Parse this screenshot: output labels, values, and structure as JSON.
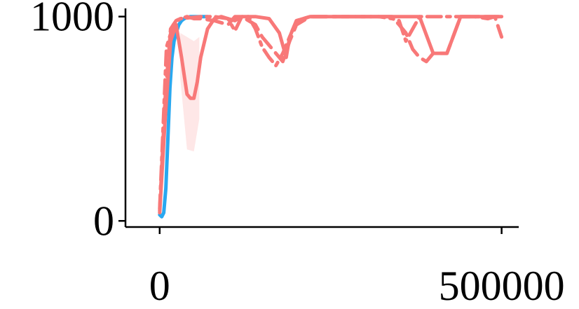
{
  "chart_data": {
    "type": "line",
    "title": "",
    "xlabel": "",
    "ylabel": "",
    "xlim": [
      -50000,
      525000
    ],
    "ylim": [
      -30,
      1040
    ],
    "xticks": [
      0,
      500000
    ],
    "xtick_labels": [
      "0",
      "500000"
    ],
    "yticks": [
      0,
      1000
    ],
    "ytick_labels": [
      "0",
      "1000"
    ],
    "grid": false,
    "legend": "none",
    "series": [
      {
        "color": "#29a8f0",
        "style": "solid",
        "x": [
          0,
          3000,
          6000,
          9000,
          12000,
          15000,
          18000,
          21000,
          24000,
          28000,
          32000,
          36000,
          40000,
          45000,
          50000,
          60000,
          70000
        ],
        "y": [
          30,
          20,
          40,
          160,
          400,
          650,
          800,
          880,
          920,
          960,
          980,
          990,
          995,
          1000,
          1000,
          1000,
          1000
        ]
      },
      {
        "color": "#f87878",
        "style": "solid",
        "band": [
          {
            "x": 30000,
            "y": 800,
            "y_low": 700,
            "y_high": 920
          },
          {
            "x": 40000,
            "y": 620,
            "y_low": 350,
            "y_high": 900
          },
          {
            "x": 50000,
            "y": 600,
            "y_low": 340,
            "y_high": 880
          },
          {
            "x": 58000,
            "y": 700,
            "y_low": 500,
            "y_high": 900
          }
        ],
        "x": [
          0,
          8000,
          16000,
          24000,
          32000,
          40000,
          45000,
          50000,
          55000,
          60000,
          70000,
          80000,
          90000,
          100000,
          110000,
          120000,
          140000,
          160000,
          175000,
          185000,
          190000,
          200000,
          220000,
          240000,
          260000,
          280000,
          300000,
          330000,
          350000,
          380000,
          400000,
          420000,
          440000,
          460000,
          480000,
          490000,
          500000
        ],
        "y": [
          40,
          500,
          880,
          960,
          800,
          620,
          600,
          600,
          680,
          800,
          940,
          990,
          1000,
          990,
          980,
          1000,
          1000,
          990,
          920,
          800,
          900,
          980,
          1000,
          1000,
          1000,
          1000,
          1000,
          1000,
          1000,
          1000,
          820,
          820,
          1000,
          1000,
          1000,
          1000,
          1000
        ]
      },
      {
        "color": "#f87878",
        "style": "dashed",
        "x": [
          0,
          8000,
          16000,
          24000,
          30000,
          40000,
          50000,
          60000,
          80000,
          100000,
          110000,
          120000,
          140000,
          150000,
          160000,
          170000,
          180000,
          190000,
          200000,
          220000,
          260000,
          300000,
          330000,
          340000,
          350000,
          360000,
          370000,
          380000,
          390000,
          400000,
          420000,
          440000,
          460000,
          480000,
          490000,
          500000
        ],
        "y": [
          50,
          600,
          940,
          980,
          990,
          1000,
          990,
          990,
          980,
          960,
          1000,
          1000,
          960,
          900,
          860,
          820,
          780,
          880,
          960,
          1000,
          1000,
          1000,
          1000,
          1000,
          960,
          920,
          840,
          800,
          780,
          820,
          820,
          1000,
          1000,
          990,
          1000,
          900
        ]
      },
      {
        "color": "#f87878",
        "style": "dashdot",
        "x": [
          0,
          10000,
          20000,
          30000,
          60000,
          80000,
          100000,
          110000,
          120000,
          130000,
          140000,
          150000,
          160000,
          170000,
          180000,
          200000,
          220000,
          260000,
          320000,
          340000,
          350000,
          360000,
          380000,
          420000,
          460000,
          500000
        ],
        "y": [
          60,
          850,
          960,
          990,
          1000,
          1000,
          990,
          930,
          1000,
          1000,
          940,
          850,
          800,
          760,
          820,
          980,
          1000,
          1000,
          1000,
          990,
          980,
          880,
          1000,
          1000,
          1000,
          1000
        ]
      }
    ]
  }
}
